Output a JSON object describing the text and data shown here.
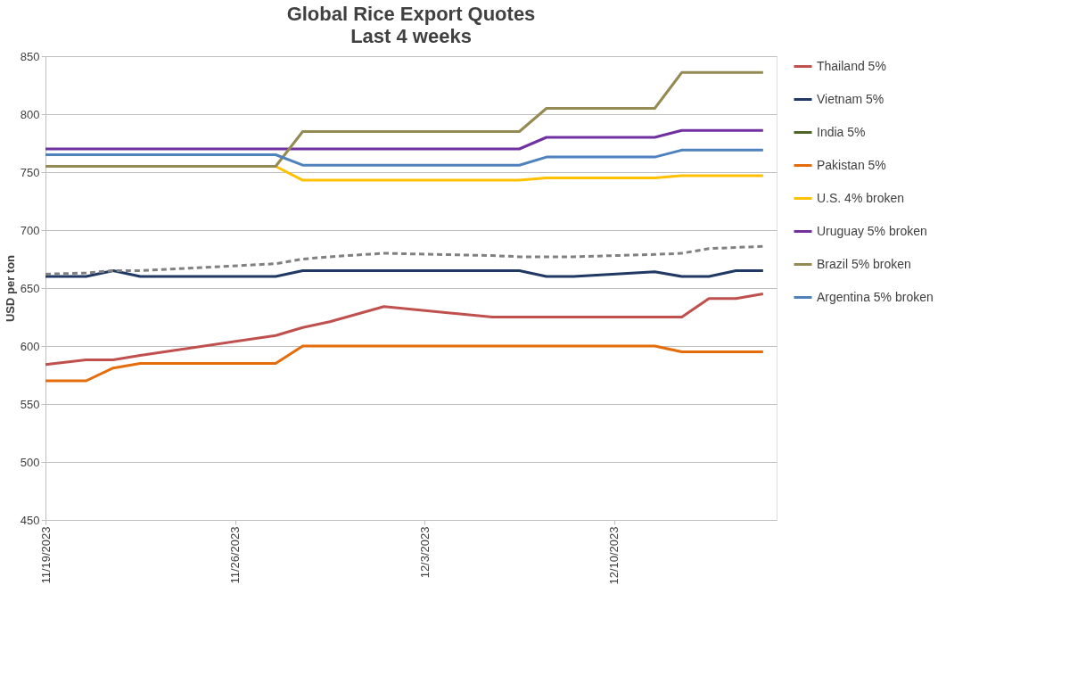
{
  "chart_data": {
    "type": "line",
    "title": "Global Rice Export Quotes",
    "subtitle": "Last 4 weeks",
    "ylabel": "USD per ton",
    "x": [
      "2023-11-19T00:00",
      "2023-11-20T12:00",
      "2023-11-21T12:00",
      "2023-11-22T12:00",
      "2023-11-27T12:00",
      "2023-11-28T12:00",
      "2023-11-29T12:00",
      "2023-12-01T12:00",
      "2023-12-05T12:00",
      "2023-12-06T12:00",
      "2023-12-07T12:00",
      "2023-12-08T12:00",
      "2023-12-11T12:00",
      "2023-12-12T12:00",
      "2023-12-13T12:00",
      "2023-12-14T12:00",
      "2023-12-15T12:00"
    ],
    "series": [
      {
        "name": "Thailand 5%",
        "color": "#c0504d",
        "values": [
          584,
          588,
          588,
          592,
          609,
          616,
          621,
          634,
          625,
          625,
          625,
          625,
          625,
          625,
          641,
          641,
          645
        ]
      },
      {
        "name": "Vietnam 5%",
        "color": "#1f3864",
        "values": [
          660,
          660,
          665,
          660,
          660,
          665,
          665,
          665,
          665,
          665,
          660,
          660,
          664,
          660,
          660,
          665,
          665
        ]
      },
      {
        "name": "India 5%",
        "color": "#4f6228",
        "values": [
          null,
          null,
          null,
          null,
          null,
          null,
          null,
          null,
          null,
          null,
          null,
          null,
          null,
          null,
          null,
          null,
          null
        ]
      },
      {
        "name": "Pakistan 5%",
        "color": "#e46c0a",
        "values": [
          570,
          570,
          581,
          585,
          585,
          600,
          600,
          600,
          600,
          600,
          600,
          600,
          600,
          595,
          595,
          595,
          595
        ]
      },
      {
        "name": "U.S. 4% broken",
        "color": "#ffc000",
        "values": [
          null,
          null,
          null,
          null,
          755,
          743,
          743,
          743,
          743,
          743,
          745,
          745,
          745,
          747,
          747,
          747,
          747
        ]
      },
      {
        "name": "Uruguay 5% broken",
        "color": "#7030a0",
        "values": [
          770,
          770,
          770,
          770,
          770,
          770,
          770,
          770,
          770,
          770,
          780,
          780,
          780,
          786,
          786,
          786,
          786
        ]
      },
      {
        "name": "Brazil 5% broken",
        "color": "#948a54",
        "values": [
          755,
          755,
          755,
          755,
          755,
          785,
          785,
          785,
          785,
          785,
          805,
          805,
          805,
          836,
          836,
          836,
          836
        ]
      },
      {
        "name": "Argentina 5% broken",
        "color": "#4f81bd",
        "values": [
          765,
          765,
          765,
          765,
          765,
          756,
          756,
          756,
          756,
          756,
          763,
          763,
          763,
          769,
          769,
          769,
          769
        ]
      },
      {
        "color": "#808080",
        "line_style": "dashed",
        "values": [
          662,
          663,
          665,
          665,
          671,
          675,
          677,
          680,
          678,
          677,
          677,
          677,
          679,
          680,
          684,
          685,
          686
        ]
      }
    ],
    "xlim": [
      "2023-11-19T00:00",
      "2023-12-16T00:00"
    ],
    "xticks": [
      {
        "value": "2023-11-19T00:00",
        "label": "11/19/2023"
      },
      {
        "value": "2023-11-26T00:00",
        "label": "11/26/2023"
      },
      {
        "value": "2023-12-03T00:00",
        "label": "12/3/2023"
      },
      {
        "value": "2023-12-10T00:00",
        "label": "12/10/2023"
      }
    ],
    "ylim": [
      450,
      850
    ],
    "yticks": [
      450,
      500,
      550,
      600,
      650,
      700,
      750,
      800,
      850
    ],
    "grid": "y",
    "legend": "right",
    "line_style": "solid"
  }
}
